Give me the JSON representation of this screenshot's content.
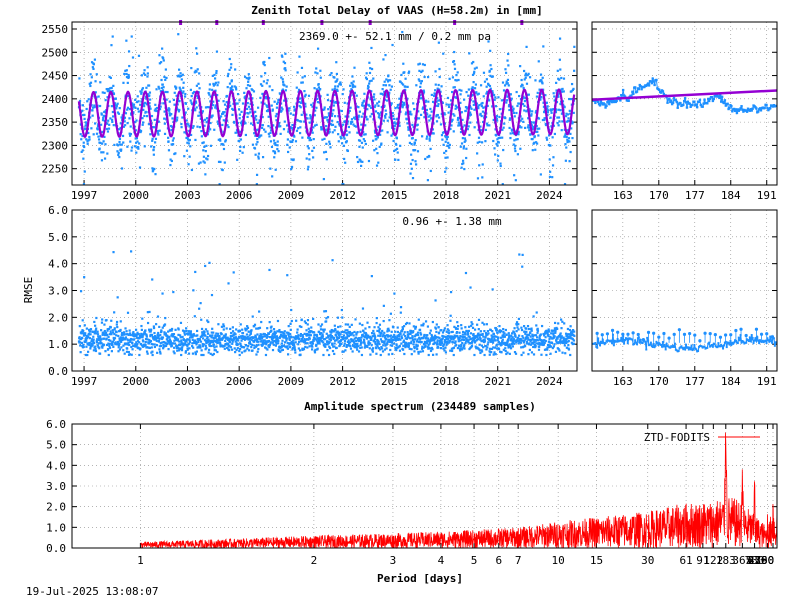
{
  "chart_data": [
    {
      "id": "ztd_series",
      "type": "scatter",
      "title": "Zenith Total Delay of VAAS (H=58.2m) in [mm]",
      "annotation": "2369.0 +-  52.1 mm /  0.2 mm pa",
      "xlabel": "",
      "ylabel": "",
      "xlim": [
        1996.3,
        2025.6
      ],
      "ylim": [
        2215,
        2565
      ],
      "x_ticks": [
        "1997",
        "2000",
        "2003",
        "2006",
        "2009",
        "2012",
        "2015",
        "2018",
        "2021",
        "2024"
      ],
      "x_tick_values": [
        1997,
        2000,
        2003,
        2006,
        2009,
        2012,
        2015,
        2018,
        2021,
        2024
      ],
      "y_ticks": [
        "2250",
        "2300",
        "2350",
        "2400",
        "2450",
        "2500",
        "2550"
      ],
      "y_tick_values": [
        2250,
        2300,
        2350,
        2400,
        2450,
        2500,
        2550
      ],
      "model": {
        "mean": 2369.0,
        "amplitude": 48,
        "trend_mm_per_year": 0.2,
        "spread": 52.1
      },
      "series_colors": {
        "data": "#1e90ff",
        "fit": "#9400d3"
      },
      "grid": true
    },
    {
      "id": "ztd_zoom",
      "type": "scatter",
      "xlim": [
        157,
        193
      ],
      "ylim": [
        2215,
        2565
      ],
      "x_ticks": [
        "163",
        "170",
        "177",
        "184",
        "191"
      ],
      "x_tick_values": [
        163,
        170,
        177,
        184,
        191
      ],
      "fit_line": [
        [
          157,
          2398
        ],
        [
          193,
          2418
        ]
      ],
      "series_colors": {
        "data": "#1e90ff",
        "fit": "#9400d3"
      },
      "grid": true
    },
    {
      "id": "rmse_series",
      "type": "scatter",
      "annotation": "0.96 +-  1.38 mm",
      "ylabel": "RMSE",
      "xlim": [
        1996.3,
        2025.6
      ],
      "ylim": [
        0,
        6
      ],
      "x_ticks": [
        "1997",
        "2000",
        "2003",
        "2006",
        "2009",
        "2012",
        "2015",
        "2018",
        "2021",
        "2024"
      ],
      "x_tick_values": [
        1997,
        2000,
        2003,
        2006,
        2009,
        2012,
        2015,
        2018,
        2021,
        2024
      ],
      "y_ticks": [
        "0.0",
        "1.0",
        "2.0",
        "3.0",
        "4.0",
        "5.0",
        "6.0"
      ],
      "y_tick_values": [
        0,
        1,
        2,
        3,
        4,
        5,
        6
      ],
      "series_colors": {
        "data": "#1e90ff"
      },
      "grid": true
    },
    {
      "id": "rmse_zoom",
      "type": "scatter",
      "xlim": [
        157,
        193
      ],
      "ylim": [
        0,
        6
      ],
      "x_ticks": [
        "163",
        "170",
        "177",
        "184",
        "191"
      ],
      "x_tick_values": [
        163,
        170,
        177,
        184,
        191
      ],
      "series_colors": {
        "data": "#1e90ff"
      },
      "grid": true
    },
    {
      "id": "spectrum",
      "type": "line",
      "title": "Amplitude spectrum (234489 samples)",
      "xlabel": "Period [days]",
      "ylabel": "",
      "x_scale": "frequency (1/period), log-compressed",
      "xlim": [
        0.8,
        8760
      ],
      "ylim": [
        0,
        6
      ],
      "x_ticks": [
        "1",
        "2",
        "3",
        "4",
        "5",
        "6",
        "7",
        "10",
        "15",
        "30",
        "61",
        "91",
        "122",
        "183",
        "365",
        "730",
        "2190",
        "4380",
        "8760"
      ],
      "x_tick_values": [
        1,
        2,
        3,
        4,
        5,
        6,
        7,
        10,
        15,
        30,
        61,
        91,
        122,
        183,
        365,
        730,
        2190,
        4380,
        8760
      ],
      "y_ticks": [
        "0.0",
        "1.0",
        "2.0",
        "3.0",
        "4.0",
        "5.0",
        "6.0"
      ],
      "y_tick_values": [
        0,
        1,
        2,
        3,
        4,
        5,
        6
      ],
      "legend": {
        "entries": [
          "ZTD-FODITS"
        ],
        "placement": "top-right"
      },
      "series": [
        {
          "name": "ZTD-FODITS",
          "color": "#ff0000",
          "peaks": [
            {
              "period": 183,
              "amplitude": 4.6
            },
            {
              "period": 365,
              "amplitude": 2.8
            },
            {
              "period": 730,
              "amplitude": 3.0
            },
            {
              "period": 2190,
              "amplitude": 1.1
            },
            {
              "period": 4380,
              "amplitude": 2.1
            },
            {
              "period": 8760,
              "amplitude": 1.3
            }
          ],
          "envelope": [
            [
              1,
              0.3
            ],
            [
              2,
              0.6
            ],
            [
              4,
              0.8
            ],
            [
              7,
              1.0
            ],
            [
              10,
              1.3
            ],
            [
              15,
              1.5
            ],
            [
              30,
              1.8
            ],
            [
              61,
              2.2
            ],
            [
              122,
              2.3
            ],
            [
              183,
              2.6
            ],
            [
              365,
              2.2
            ],
            [
              730,
              1.6
            ],
            [
              2190,
              1.0
            ],
            [
              4380,
              2.1
            ],
            [
              8760,
              1.3
            ]
          ]
        }
      ],
      "grid": true
    }
  ],
  "footer": {
    "timestamp": "19-Jul-2025 13:08:07"
  }
}
